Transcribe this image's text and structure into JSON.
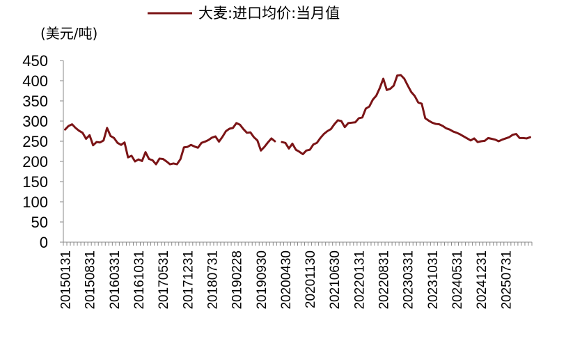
{
  "chart_data": {
    "type": "line",
    "title": "",
    "xlabel": "",
    "ylabel": "(美元/吨)",
    "ylim": [
      0,
      450
    ],
    "yticks": [
      0,
      50,
      100,
      150,
      200,
      250,
      300,
      350,
      400,
      450
    ],
    "grid": false,
    "legend_position": "top-center",
    "colors": {
      "series": "#7b1416",
      "axis": "#888888",
      "text": "#000000"
    },
    "x_tick_labels": [
      "20150131",
      "20150831",
      "20160331",
      "20161031",
      "20170531",
      "20171231",
      "20180731",
      "20190228",
      "20190930",
      "20200430",
      "20201130",
      "20210630",
      "20220131",
      "20220831",
      "20230331",
      "20231031",
      "20240531",
      "20241231",
      "20250731"
    ],
    "series": [
      {
        "name": "大麦:进口均价:当月值",
        "start": "2015-01",
        "values": [
          279,
          288,
          292,
          283,
          276,
          271,
          256,
          265,
          240,
          248,
          247,
          252,
          283,
          263,
          258,
          246,
          241,
          247,
          210,
          214,
          200,
          205,
          201,
          223,
          206,
          203,
          193,
          207,
          206,
          200,
          193,
          195,
          193,
          206,
          235,
          236,
          241,
          237,
          234,
          246,
          249,
          253,
          259,
          262,
          249,
          261,
          275,
          281,
          283,
          295,
          291,
          280,
          271,
          272,
          260,
          252,
          227,
          236,
          247,
          257,
          250,
          null,
          248,
          246,
          232,
          244,
          229,
          224,
          218,
          227,
          229,
          242,
          246,
          258,
          268,
          275,
          280,
          292,
          302,
          300,
          285,
          295,
          296,
          297,
          307,
          309,
          331,
          336,
          353,
          363,
          382,
          405,
          377,
          380,
          388,
          413,
          414,
          405,
          388,
          372,
          362,
          346,
          343,
          307,
          301,
          296,
          293,
          292,
          288,
          282,
          279,
          274,
          271,
          267,
          262,
          257,
          252,
          257,
          248,
          250,
          251,
          258,
          256,
          254,
          250,
          254,
          257,
          260,
          266,
          268,
          258,
          258,
          257,
          260
        ]
      }
    ]
  }
}
